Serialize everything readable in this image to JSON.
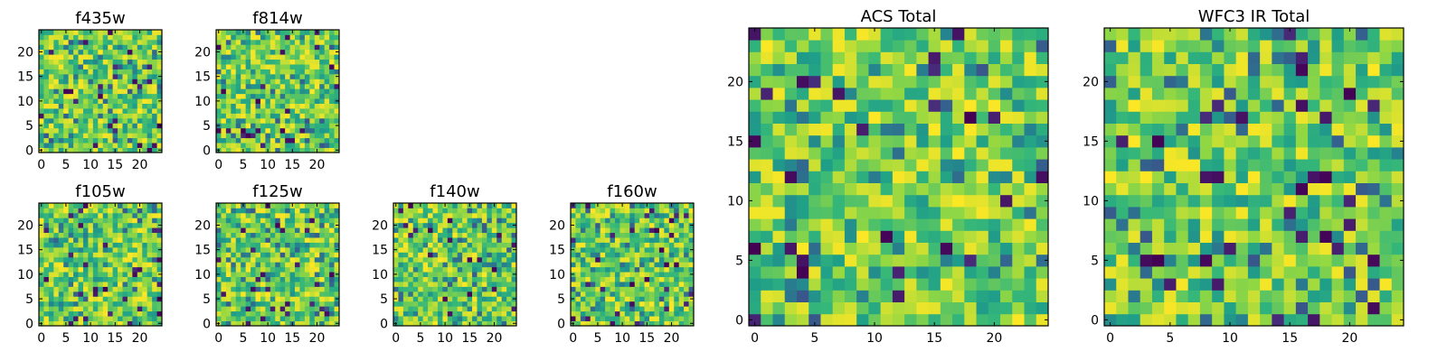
{
  "figure": {
    "colormap": "viridis",
    "colors": {
      "low": "#440154",
      "mid": "#21918c",
      "high": "#fde725"
    }
  },
  "chart_data": [
    {
      "type": "heatmap",
      "title": "f435w",
      "grid_size": 25,
      "x_ticks": [
        0,
        5,
        10,
        15,
        20
      ],
      "y_ticks": [
        0,
        5,
        10,
        15,
        20
      ],
      "xlim": [
        0,
        24
      ],
      "ylim": [
        0,
        24
      ],
      "value_range": [
        0,
        1
      ]
    },
    {
      "type": "heatmap",
      "title": "f814w",
      "grid_size": 25,
      "x_ticks": [
        0,
        5,
        10,
        15,
        20
      ],
      "y_ticks": [
        0,
        5,
        10,
        15,
        20
      ],
      "xlim": [
        0,
        24
      ],
      "ylim": [
        0,
        24
      ],
      "value_range": [
        0,
        1
      ]
    },
    {
      "type": "heatmap",
      "title": "f105w",
      "grid_size": 25,
      "x_ticks": [
        0,
        5,
        10,
        15,
        20
      ],
      "y_ticks": [
        0,
        5,
        10,
        15,
        20
      ],
      "xlim": [
        0,
        24
      ],
      "ylim": [
        0,
        24
      ],
      "value_range": [
        0,
        1
      ]
    },
    {
      "type": "heatmap",
      "title": "f125w",
      "grid_size": 25,
      "x_ticks": [
        0,
        5,
        10,
        15,
        20
      ],
      "y_ticks": [
        0,
        5,
        10,
        15,
        20
      ],
      "xlim": [
        0,
        24
      ],
      "ylim": [
        0,
        24
      ],
      "value_range": [
        0,
        1
      ]
    },
    {
      "type": "heatmap",
      "title": "f140w",
      "grid_size": 25,
      "x_ticks": [
        0,
        5,
        10,
        15,
        20
      ],
      "y_ticks": [
        0,
        5,
        10,
        15,
        20
      ],
      "xlim": [
        0,
        24
      ],
      "ylim": [
        0,
        24
      ],
      "value_range": [
        0,
        1
      ]
    },
    {
      "type": "heatmap",
      "title": "f160w",
      "grid_size": 25,
      "x_ticks": [
        0,
        5,
        10,
        15,
        20
      ],
      "y_ticks": [
        0,
        5,
        10,
        15,
        20
      ],
      "xlim": [
        0,
        24
      ],
      "ylim": [
        0,
        24
      ],
      "value_range": [
        0,
        1
      ]
    },
    {
      "type": "heatmap",
      "title": "ACS Total",
      "grid_size": 25,
      "x_ticks": [
        0,
        5,
        10,
        15,
        20
      ],
      "y_ticks": [
        0,
        5,
        10,
        15,
        20
      ],
      "xlim": [
        0,
        24
      ],
      "ylim": [
        0,
        24
      ],
      "value_range": [
        0,
        1
      ]
    },
    {
      "type": "heatmap",
      "title": "WFC3 IR Total",
      "grid_size": 25,
      "x_ticks": [
        0,
        5,
        10,
        15,
        20
      ],
      "y_ticks": [
        0,
        5,
        10,
        15,
        20
      ],
      "xlim": [
        0,
        24
      ],
      "ylim": [
        0,
        24
      ],
      "value_range": [
        0,
        1
      ]
    }
  ]
}
